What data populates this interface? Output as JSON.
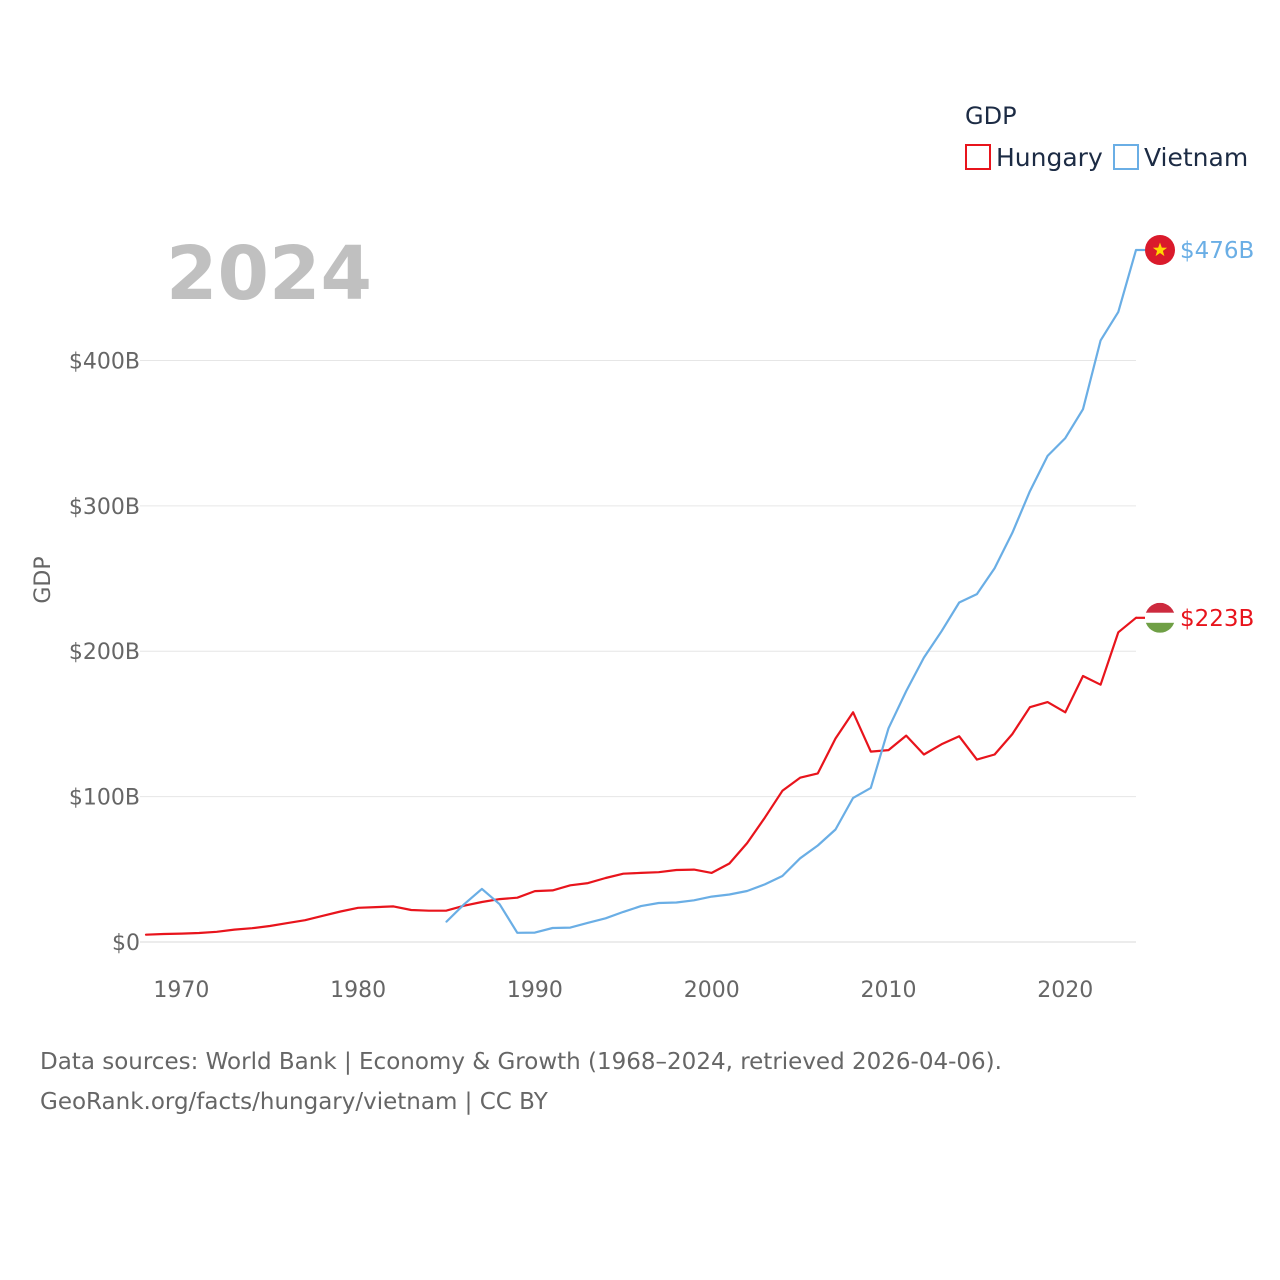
{
  "chart_data": {
    "type": "line",
    "title": "GDP",
    "year_label": "2024",
    "ylabel": "GDP",
    "xlabel": "",
    "xlim": [
      1968,
      2024
    ],
    "ylim": [
      0,
      476
    ],
    "x_ticks": [
      1970,
      1980,
      1990,
      2000,
      2010,
      2020
    ],
    "y_ticks": [
      {
        "value": 0,
        "label": "$0"
      },
      {
        "value": 100,
        "label": "$100B"
      },
      {
        "value": 200,
        "label": "$200B"
      },
      {
        "value": 300,
        "label": "$300B"
      },
      {
        "value": 400,
        "label": "$400B"
      }
    ],
    "grid": true,
    "legend_position": "top-right",
    "series": [
      {
        "name": "Hungary",
        "color": "#e8141c",
        "end_label": "$223B",
        "flag_icon": "hungary-flag-icon",
        "x": [
          1968,
          1969,
          1970,
          1971,
          1972,
          1973,
          1974,
          1975,
          1976,
          1977,
          1978,
          1979,
          1980,
          1981,
          1982,
          1983,
          1984,
          1985,
          1986,
          1987,
          1988,
          1989,
          1990,
          1991,
          1992,
          1993,
          1994,
          1995,
          1996,
          1997,
          1998,
          1999,
          2000,
          2001,
          2002,
          2003,
          2004,
          2005,
          2006,
          2007,
          2008,
          2009,
          2010,
          2011,
          2012,
          2013,
          2014,
          2015,
          2016,
          2017,
          2018,
          2019,
          2020,
          2021,
          2022,
          2023,
          2024
        ],
        "values": [
          5,
          5.5,
          5.8,
          6.2,
          7,
          8.5,
          9.5,
          11,
          13,
          15,
          18,
          21,
          23.5,
          24,
          24.5,
          22,
          21.5,
          21.6,
          25,
          27.5,
          29.5,
          30.5,
          35,
          35.5,
          39,
          40.5,
          44,
          47,
          47.5,
          48,
          49.5,
          49.8,
          47.5,
          54,
          68,
          85.5,
          104,
          113,
          116,
          140,
          158,
          131,
          132,
          142,
          129,
          136,
          141.5,
          125.5,
          129,
          143,
          161.5,
          165,
          158,
          183,
          177,
          213,
          223
        ]
      },
      {
        "name": "Vietnam",
        "color": "#6aaee5",
        "end_label": "$476B",
        "flag_icon": "vietnam-flag-icon",
        "x": [
          1985,
          1986,
          1987,
          1988,
          1989,
          1990,
          1991,
          1992,
          1993,
          1994,
          1995,
          1996,
          1997,
          1998,
          1999,
          2000,
          2001,
          2002,
          2003,
          2004,
          2005,
          2006,
          2007,
          2008,
          2009,
          2010,
          2011,
          2012,
          2013,
          2014,
          2015,
          2016,
          2017,
          2018,
          2019,
          2020,
          2021,
          2022,
          2023,
          2024
        ],
        "values": [
          14,
          26,
          36.5,
          26,
          6.3,
          6.5,
          9.6,
          9.9,
          13.2,
          16.3,
          20.7,
          24.7,
          26.8,
          27.2,
          28.7,
          31.2,
          32.7,
          35.1,
          39.6,
          45.4,
          57.6,
          66.4,
          77.4,
          99.1,
          106,
          147,
          172.6,
          195.6,
          213.7,
          233.5,
          239.3,
          257.1,
          281.4,
          310.1,
          334.4,
          346.6,
          366.5,
          413.8,
          433.4,
          476
        ]
      }
    ]
  },
  "footer": {
    "line1": "Data sources: World Bank | Economy & Growth (1968–2024, retrieved 2026-04-06).",
    "line2": "GeoRank.org/facts/hungary/vietnam | CC BY"
  }
}
